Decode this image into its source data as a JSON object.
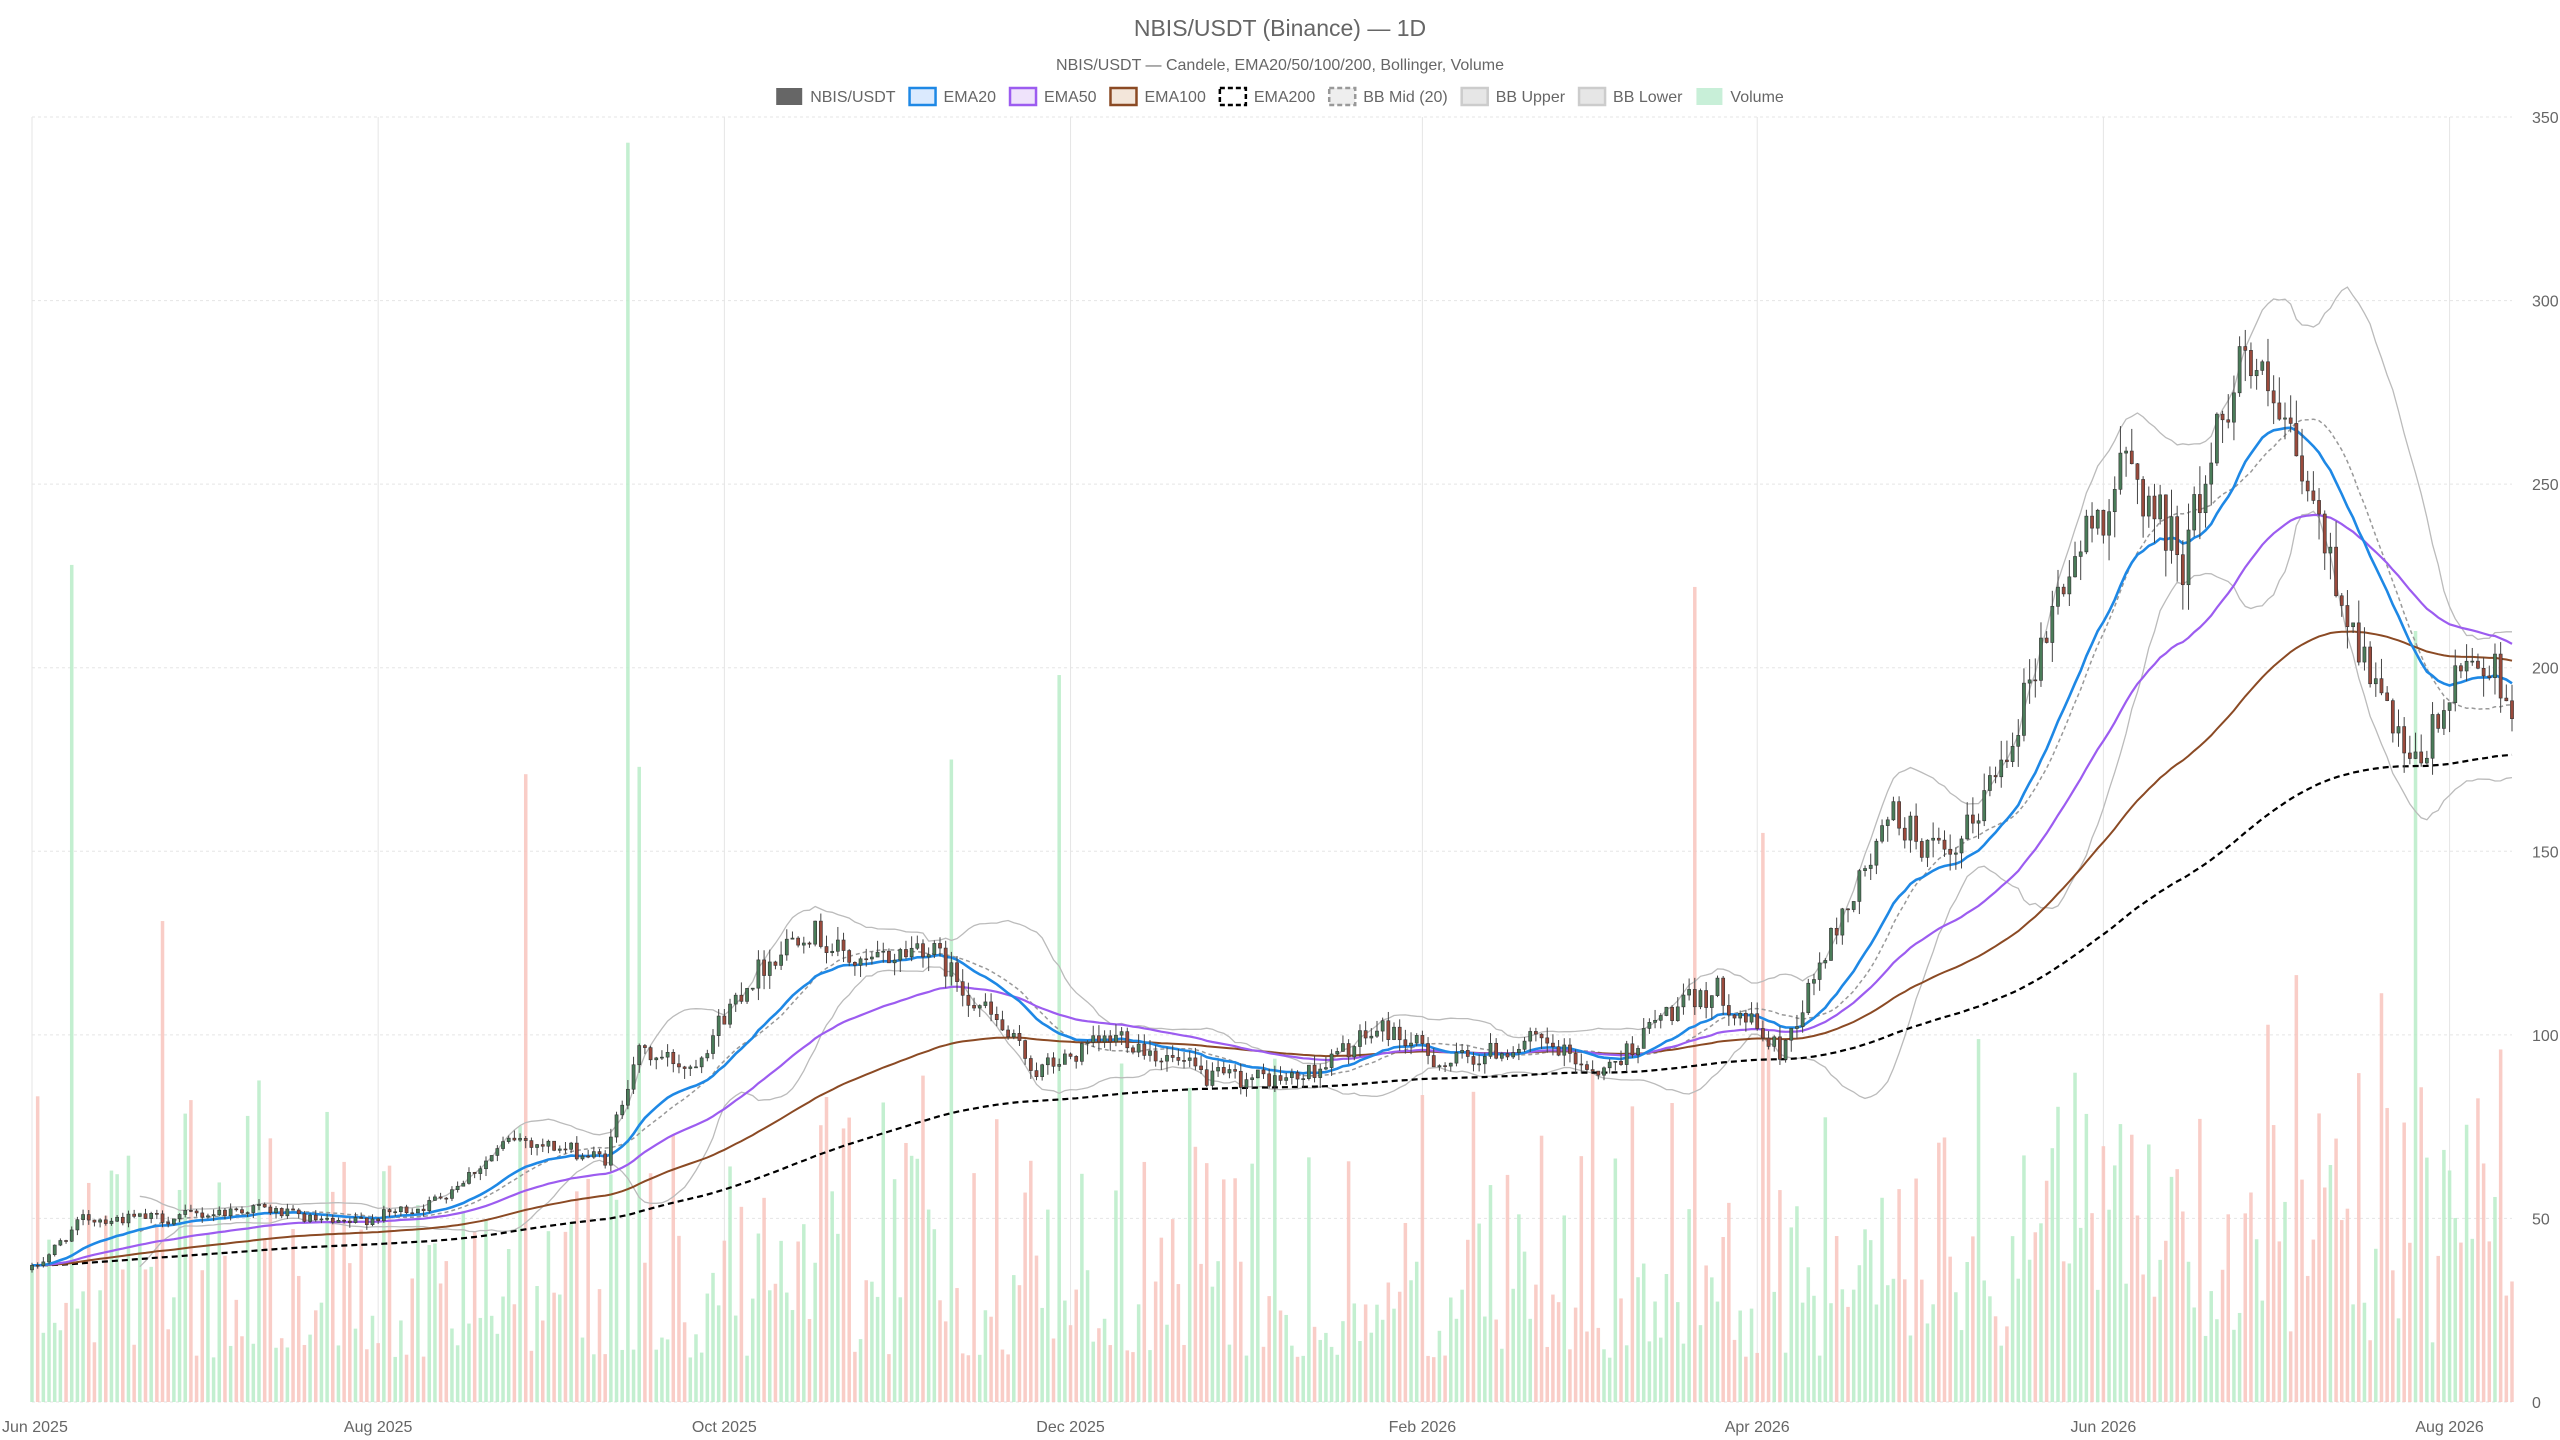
{
  "chart_data": {
    "type": "candlestick",
    "title": "NBIS/USDT (Binance) — 1D",
    "subtitle": "NBIS/USDT — Candele, EMA20/50/100/200, Bollinger, Volume",
    "x_range": [
      "2025-06-01",
      "2026-08-12"
    ],
    "y_range": [
      0,
      350
    ],
    "y_ticks": [
      0,
      50,
      100,
      150,
      200,
      250,
      300,
      350
    ],
    "x_ticks": [
      {
        "date": "2025-06-01",
        "label": "Jun 2025"
      },
      {
        "date": "2025-08-01",
        "label": "Aug 2025"
      },
      {
        "date": "2025-10-01",
        "label": "Oct 2025"
      },
      {
        "date": "2025-12-01",
        "label": "Dec 2025"
      },
      {
        "date": "2026-02-01",
        "label": "Feb 2026"
      },
      {
        "date": "2026-04-01",
        "label": "Apr 2026"
      },
      {
        "date": "2026-06-01",
        "label": "Jun 2026"
      },
      {
        "date": "2026-08-01",
        "label": "Aug 2026"
      }
    ],
    "legend": [
      {
        "label": "NBIS/USDT",
        "style": "solid-fill",
        "fill": "#666666",
        "stroke": "#666666"
      },
      {
        "label": "EMA20",
        "style": "line",
        "fill": "#dbeafe",
        "stroke": "#1e88e5"
      },
      {
        "label": "EMA50",
        "style": "line",
        "fill": "#efe3fb",
        "stroke": "#9c5cf0"
      },
      {
        "label": "EMA100",
        "style": "line",
        "fill": "#f3e6da",
        "stroke": "#8b4a24"
      },
      {
        "label": "EMA200",
        "style": "dashed",
        "fill": "#ffffff",
        "stroke": "#000000"
      },
      {
        "label": "BB Mid (20)",
        "style": "dashed",
        "fill": "#eeeeee",
        "stroke": "#999999"
      },
      {
        "label": "BB Upper",
        "style": "line",
        "fill": "#e6e6e6",
        "stroke": "#cccccc"
      },
      {
        "label": "BB Lower",
        "style": "line",
        "fill": "#e6e6e6",
        "stroke": "#cccccc"
      },
      {
        "label": "Volume",
        "style": "solid-fill",
        "fill": "#c8efd8",
        "stroke": "#c8efd8"
      }
    ],
    "colors": {
      "up": "#4a7c59",
      "down": "#9a4a3c",
      "volume_up": "#b8ecc8",
      "volume_down": "#f8c4bd",
      "ema20": "#1e88e5",
      "ema50": "#9c5cf0",
      "ema100": "#8b4a24",
      "ema200": "#000000",
      "bb_mid": "#999999",
      "bb_band": "#bbbbbb",
      "grid": "#e5e5e5"
    },
    "price_path": [
      [
        "2025-06-01",
        36
      ],
      [
        "2025-06-10",
        50
      ],
      [
        "2025-06-25",
        50
      ],
      [
        "2025-07-10",
        53
      ],
      [
        "2025-07-25",
        48
      ],
      [
        "2025-08-10",
        54
      ],
      [
        "2025-08-25",
        72
      ],
      [
        "2025-09-10",
        66
      ],
      [
        "2025-09-15",
        95
      ],
      [
        "2025-09-25",
        92
      ],
      [
        "2025-10-05",
        115
      ],
      [
        "2025-10-15",
        130
      ],
      [
        "2025-10-25",
        118
      ],
      [
        "2025-11-05",
        125
      ],
      [
        "2025-11-15",
        108
      ],
      [
        "2025-11-25",
        90
      ],
      [
        "2025-12-10",
        100
      ],
      [
        "2025-12-25",
        88
      ],
      [
        "2026-01-10",
        88
      ],
      [
        "2026-01-25",
        102
      ],
      [
        "2026-02-05",
        92
      ],
      [
        "2026-02-20",
        98
      ],
      [
        "2026-03-05",
        90
      ],
      [
        "2026-03-15",
        105
      ],
      [
        "2026-03-25",
        112
      ],
      [
        "2026-04-05",
        95
      ],
      [
        "2026-04-15",
        130
      ],
      [
        "2026-04-25",
        160
      ],
      [
        "2026-05-05",
        145
      ],
      [
        "2026-05-15",
        180
      ],
      [
        "2026-05-25",
        225
      ],
      [
        "2026-06-05",
        255
      ],
      [
        "2026-06-15",
        230
      ],
      [
        "2026-06-25",
        288
      ],
      [
        "2026-07-05",
        255
      ],
      [
        "2026-07-15",
        210
      ],
      [
        "2026-07-25",
        170
      ],
      [
        "2026-08-05",
        205
      ],
      [
        "2026-08-12",
        192
      ]
    ],
    "volume_scale_max": 350,
    "volume_spikes": [
      [
        "2025-06-08",
        228
      ],
      [
        "2025-06-24",
        131
      ],
      [
        "2025-08-27",
        171
      ],
      [
        "2025-09-14",
        343
      ],
      [
        "2025-09-16",
        173
      ],
      [
        "2025-11-10",
        175
      ],
      [
        "2025-11-29",
        198
      ],
      [
        "2026-03-21",
        222
      ],
      [
        "2026-04-02",
        155
      ],
      [
        "2026-07-26",
        210
      ]
    ]
  }
}
